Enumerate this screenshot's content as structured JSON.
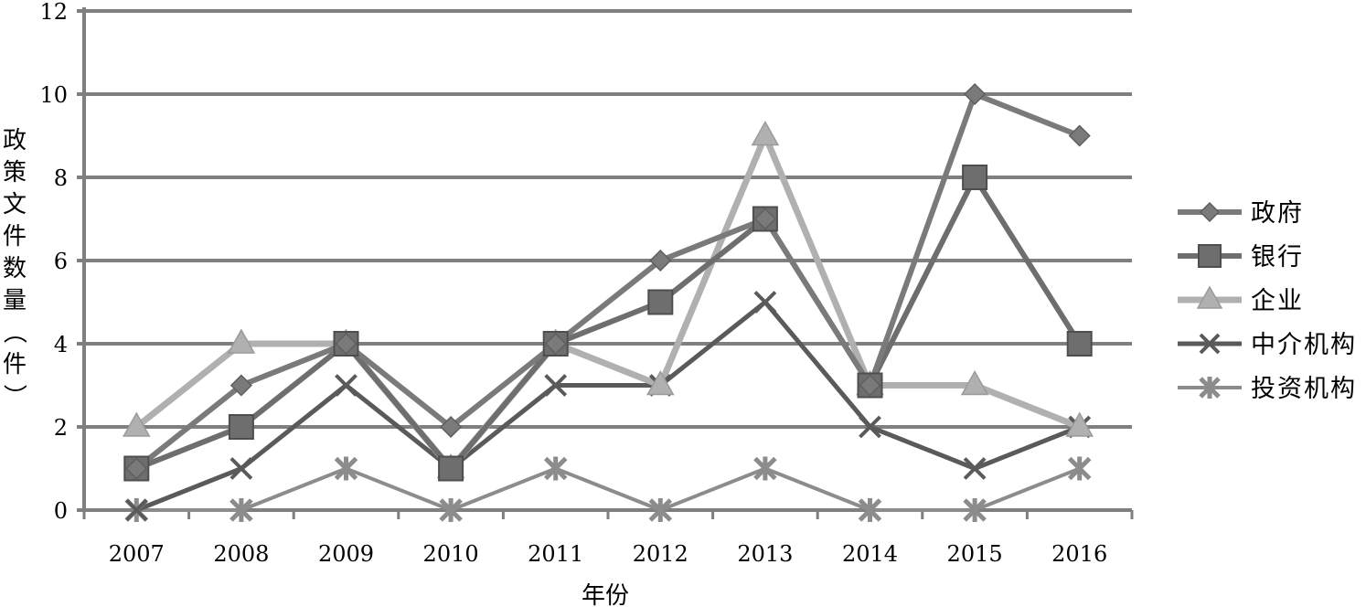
{
  "chart_data": {
    "type": "line",
    "xlabel": "年份",
    "ylabel": "政策文件数量（件）",
    "ylim": [
      0,
      12
    ],
    "yticks": [
      0,
      2,
      4,
      6,
      8,
      10,
      12
    ],
    "grid": "horizontal",
    "legend_position": "right",
    "categories": [
      "2007",
      "2008",
      "2009",
      "2010",
      "2011",
      "2012",
      "2013",
      "2014",
      "2015",
      "2016"
    ],
    "series": [
      {
        "name": "政府",
        "values": [
          1,
          3,
          4,
          2,
          4,
          6,
          7,
          3,
          10,
          9
        ],
        "marker": "diamond",
        "color": "#7a7a7a"
      },
      {
        "name": "银行",
        "values": [
          1,
          2,
          4,
          1,
          4,
          5,
          7,
          3,
          8,
          4
        ],
        "marker": "square",
        "color": "#6e6e6e"
      },
      {
        "name": "企业",
        "values": [
          2,
          4,
          4,
          1,
          4,
          3,
          9,
          3,
          3,
          2
        ],
        "marker": "triangle",
        "color": "#b0b0b0"
      },
      {
        "name": "中介机构",
        "values": [
          0,
          1,
          3,
          1,
          3,
          3,
          5,
          2,
          1,
          2
        ],
        "marker": "x",
        "color": "#5a5a5a"
      },
      {
        "name": "投资机构",
        "values": [
          0,
          0,
          1,
          0,
          1,
          0,
          1,
          0,
          0,
          1
        ],
        "marker": "star",
        "color": "#8c8c8c"
      }
    ]
  }
}
